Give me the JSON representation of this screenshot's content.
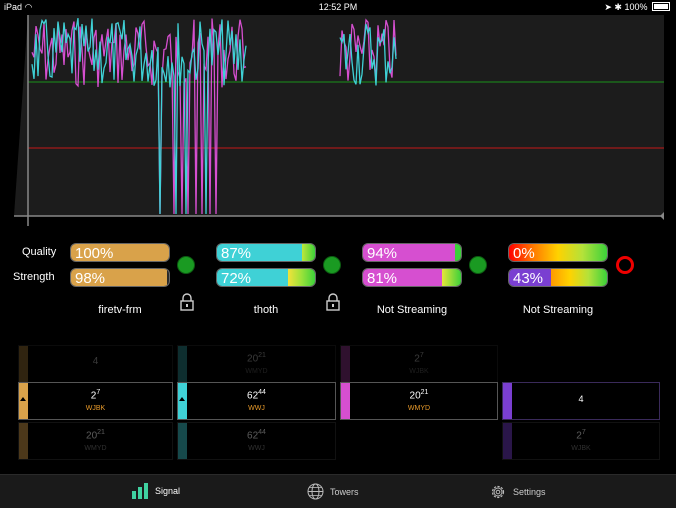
{
  "status_bar": {
    "device": "iPad",
    "time": "12:52 PM",
    "battery": "100%"
  },
  "colors": {
    "source1": "#d9a24a",
    "source2": "#3fd1d6",
    "source3": "#d64fd0",
    "source4": "#7a3fd1",
    "good_dot": "#1a9a22",
    "bad_ring": "#e00000",
    "green_line": "#1b6b1b",
    "red_line": "#8b1a1a"
  },
  "meters": {
    "row_labels": {
      "quality": "Quality",
      "strength": "Strength"
    },
    "sources": [
      {
        "name": "firetv-frm",
        "quality": "100%",
        "strength": "98%",
        "quality_value": 1.0,
        "strength_value": 0.98,
        "status": "good",
        "locked": true
      },
      {
        "name": "thoth",
        "quality": "87%",
        "strength": "72%",
        "quality_value": 0.87,
        "strength_value": 0.72,
        "status": "good",
        "locked": true
      },
      {
        "name": "Not Streaming",
        "quality": "94%",
        "strength": "81%",
        "quality_value": 0.94,
        "strength_value": 0.81,
        "status": "good",
        "locked": false
      },
      {
        "name": "Not Streaming",
        "quality": "0%",
        "strength": "43%",
        "quality_value": 0.0,
        "strength_value": 0.43,
        "status": "bad",
        "locked": false
      }
    ]
  },
  "towers": {
    "top_row": [
      {
        "channel": "4",
        "sub": "",
        "call": ""
      },
      {
        "channel": "20",
        "sub": "21",
        "call": "WMYD"
      },
      {
        "channel": "2",
        "sub": "7",
        "call": "WJBK"
      }
    ],
    "main_row": [
      {
        "channel": "2",
        "sub": "7",
        "call": "WJBK"
      },
      {
        "channel": "62",
        "sub": "44",
        "call": "WWJ"
      },
      {
        "channel": "20",
        "sub": "21",
        "call": "WMYD"
      },
      {
        "channel": "4",
        "sub": "",
        "call": ""
      }
    ],
    "bottom_row": [
      {
        "channel": "20",
        "sub": "21",
        "call": "WMYD"
      },
      {
        "channel": "62",
        "sub": "44",
        "call": "WWJ"
      },
      {
        "channel": "2",
        "sub": "7",
        "call": "WJBK"
      }
    ]
  },
  "tabs": [
    {
      "label": "Signal",
      "icon": "signal-bars-icon",
      "active": true
    },
    {
      "label": "Towers",
      "icon": "globe-icon",
      "active": false
    },
    {
      "label": "Settings",
      "icon": "gear-icon",
      "active": false
    }
  ]
}
